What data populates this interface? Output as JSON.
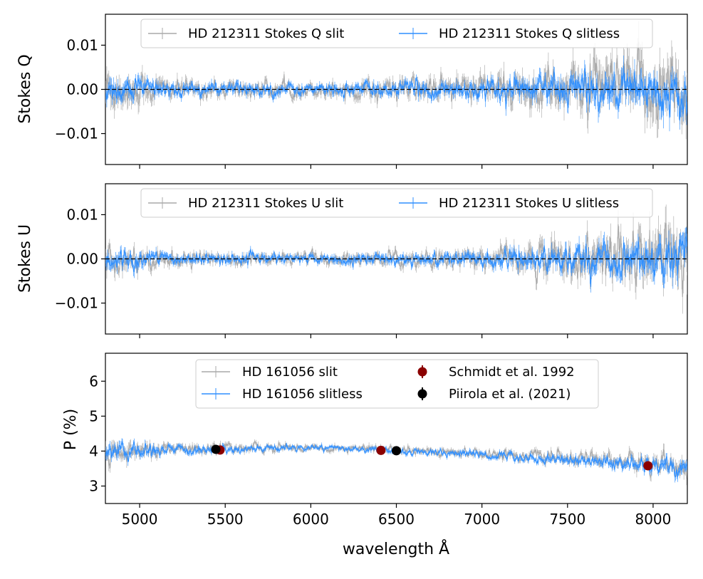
{
  "chart_data": [
    {
      "type": "line",
      "panel": "stokes-q",
      "ylabel": "Stokes Q",
      "xlim": [
        4800,
        8200
      ],
      "ylim": [
        -0.017,
        0.017
      ],
      "yticks": [
        -0.01,
        0.0,
        0.01
      ],
      "ytick_labels": [
        "−0.01",
        "0.00",
        "0.01"
      ],
      "zero_line": true,
      "legend_position": "top",
      "series": [
        {
          "name": "HD 212311 Stokes Q slit",
          "color": "#a9a9a9",
          "base": 0.0,
          "noise_profile": [
            [
              4800,
              0.0045
            ],
            [
              5200,
              0.002
            ],
            [
              6000,
              0.0015
            ],
            [
              7000,
              0.003
            ],
            [
              7600,
              0.005
            ],
            [
              8200,
              0.008
            ]
          ]
        },
        {
          "name": "HD 212311 Stokes Q slitless",
          "color": "#2f8fff",
          "base": 0.0,
          "noise_profile": [
            [
              4800,
              0.003
            ],
            [
              5200,
              0.0015
            ],
            [
              6000,
              0.0012
            ],
            [
              7000,
              0.002
            ],
            [
              7600,
              0.0035
            ],
            [
              8200,
              0.0045
            ]
          ]
        }
      ]
    },
    {
      "type": "line",
      "panel": "stokes-u",
      "ylabel": "Stokes U",
      "xlim": [
        4800,
        8200
      ],
      "ylim": [
        -0.017,
        0.017
      ],
      "yticks": [
        -0.01,
        0.0,
        0.01
      ],
      "ytick_labels": [
        "−0.01",
        "0.00",
        "0.01"
      ],
      "zero_line": true,
      "legend_position": "top",
      "series": [
        {
          "name": "HD 212311 Stokes U slit",
          "color": "#a9a9a9",
          "base": 0.0,
          "noise_profile": [
            [
              4800,
              0.003
            ],
            [
              5200,
              0.0015
            ],
            [
              6000,
              0.0012
            ],
            [
              7000,
              0.002
            ],
            [
              7600,
              0.0045
            ],
            [
              8200,
              0.0075
            ]
          ]
        },
        {
          "name": "HD 212311 Stokes U slitless",
          "color": "#2f8fff",
          "base": 0.0,
          "noise_profile": [
            [
              4800,
              0.0025
            ],
            [
              5200,
              0.0012
            ],
            [
              6000,
              0.001
            ],
            [
              7000,
              0.0015
            ],
            [
              7600,
              0.003
            ],
            [
              8200,
              0.0045
            ]
          ]
        }
      ]
    },
    {
      "type": "line",
      "panel": "polarization",
      "ylabel": "P (%)",
      "xlabel": "wavelength Å",
      "xlim": [
        4800,
        8200
      ],
      "ylim": [
        2.5,
        6.8
      ],
      "yticks": [
        3,
        4,
        5,
        6
      ],
      "ytick_labels": [
        "3",
        "4",
        "5",
        "6"
      ],
      "xticks": [
        5000,
        5500,
        6000,
        6500,
        7000,
        7500,
        8000
      ],
      "xtick_labels": [
        "5000",
        "5500",
        "6000",
        "6500",
        "7000",
        "7500",
        "8000"
      ],
      "zero_line": false,
      "legend_position": "top",
      "series": [
        {
          "name": "HD 161056 slit",
          "color": "#a9a9a9",
          "trend": [
            [
              4800,
              4.0
            ],
            [
              5500,
              4.1
            ],
            [
              6000,
              4.1
            ],
            [
              6500,
              4.05
            ],
            [
              7000,
              3.95
            ],
            [
              7500,
              3.8
            ],
            [
              8200,
              3.6
            ]
          ],
          "noise_profile": [
            [
              4800,
              0.3
            ],
            [
              5200,
              0.15
            ],
            [
              6000,
              0.1
            ],
            [
              7000,
              0.12
            ],
            [
              7600,
              0.18
            ],
            [
              8200,
              0.3
            ]
          ]
        },
        {
          "name": "HD 161056 slitless",
          "color": "#2f8fff",
          "trend": [
            [
              4800,
              3.95
            ],
            [
              5500,
              4.05
            ],
            [
              6000,
              4.1
            ],
            [
              6500,
              4.0
            ],
            [
              7000,
              3.9
            ],
            [
              7500,
              3.75
            ],
            [
              8200,
              3.55
            ]
          ],
          "noise_profile": [
            [
              4800,
              0.25
            ],
            [
              5200,
              0.12
            ],
            [
              6000,
              0.08
            ],
            [
              7000,
              0.1
            ],
            [
              7600,
              0.15
            ],
            [
              8200,
              0.25
            ]
          ]
        },
        {
          "name": "Schmidt et al. 1992",
          "type": "scatter",
          "color": "#8b0000",
          "points": [
            [
              5470,
              4.03
            ],
            [
              6410,
              4.02
            ],
            [
              7970,
              3.58
            ]
          ]
        },
        {
          "name": "Piirola et al. (2021)",
          "type": "scatter",
          "color": "#000000",
          "points": [
            [
              5445,
              4.05
            ],
            [
              6500,
              4.01
            ]
          ]
        }
      ]
    }
  ]
}
